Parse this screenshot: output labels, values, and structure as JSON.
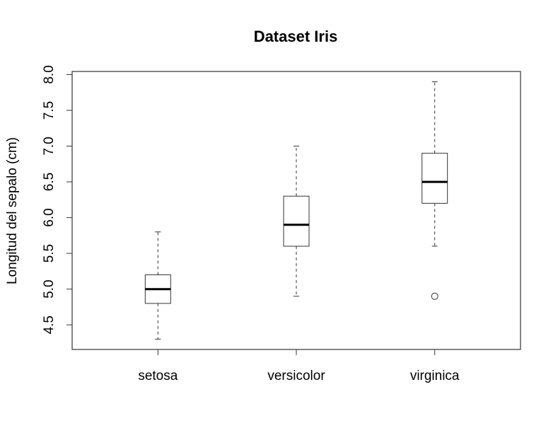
{
  "chart_data": {
    "type": "boxplot",
    "title": "Dataset Iris",
    "y_label": "Longitud del sepalo (cm)",
    "categories": [
      "setosa",
      "versicolor",
      "virginica"
    ],
    "boxes": [
      {
        "min": 4.3,
        "q1": 4.8,
        "median": 5.0,
        "q3": 5.2,
        "max": 5.8
      },
      {
        "min": 4.9,
        "q1": 5.6,
        "median": 5.9,
        "q3": 6.3,
        "max": 7.0
      },
      {
        "min": 5.6,
        "q1": 6.2,
        "median": 6.5,
        "q3": 6.9,
        "max": 7.9,
        "outliers": [
          4.9
        ]
      }
    ],
    "ylim": [
      4.156,
      8.044
    ],
    "yticks": [
      4.5,
      {
        "value": 5,
        "label": "5.0"
      },
      5.5,
      {
        "value": 6,
        "label": "6.0"
      },
      6.5,
      {
        "value": 7,
        "label": "7.0"
      },
      7.5,
      {
        "value": 8,
        "label": "8.0"
      }
    ]
  }
}
